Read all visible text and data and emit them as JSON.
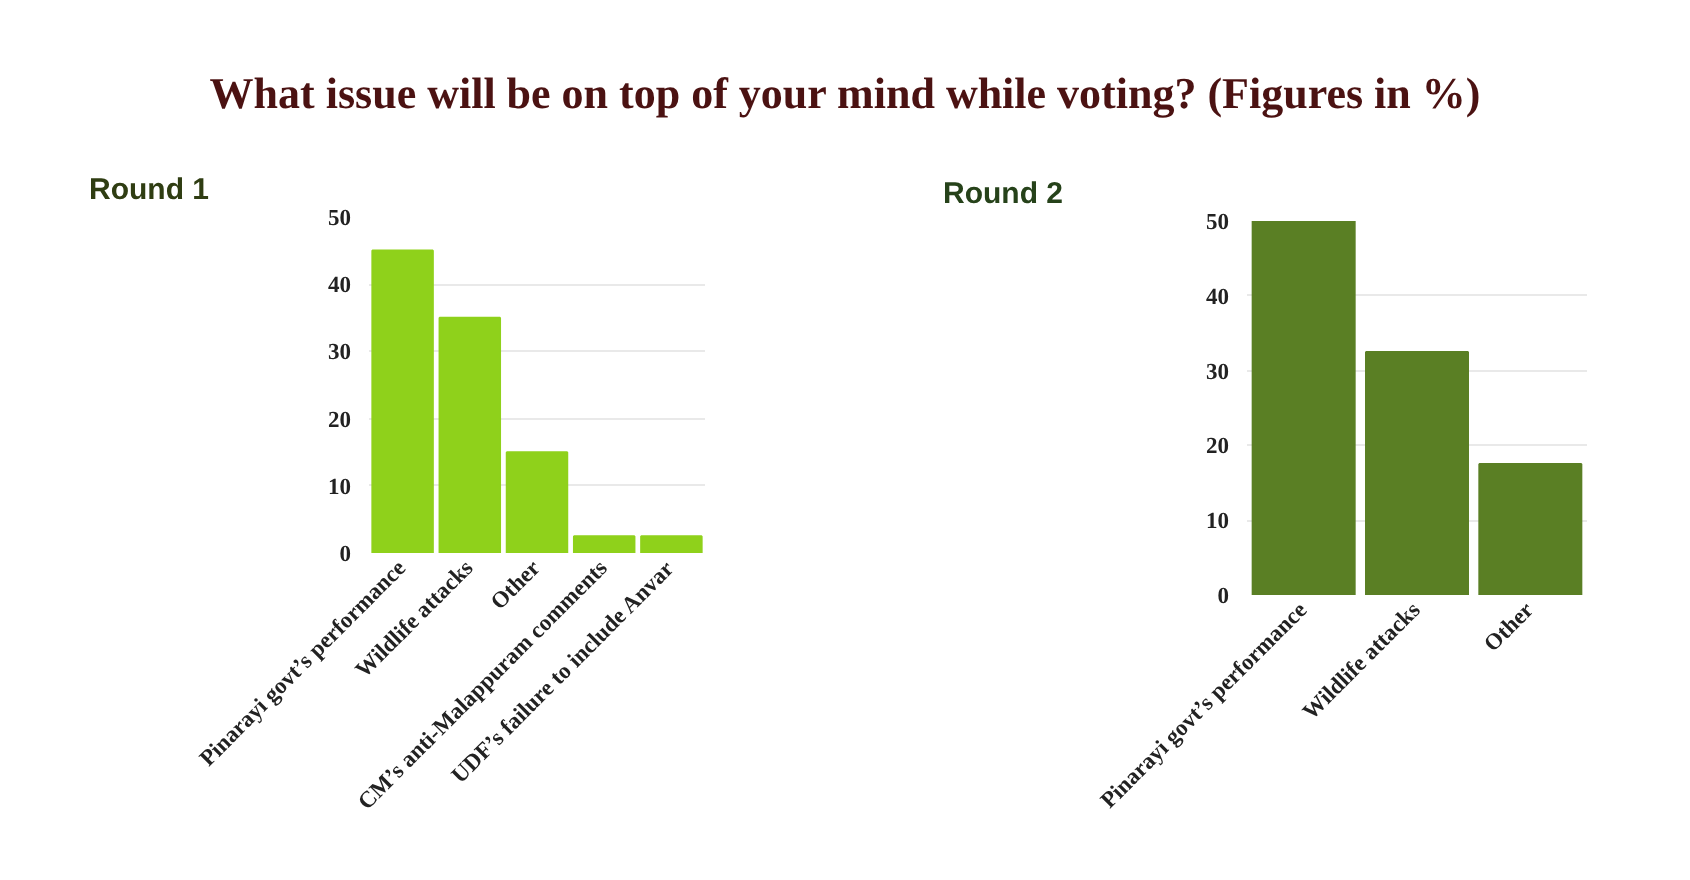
{
  "chart_data": [
    {
      "type": "bar",
      "title": "What issue will be on top of your mind while voting? (Figures in %)",
      "subtitle": "Round 1",
      "categories": [
        "Pinarayi govt’s performance",
        "Wildlife attacks",
        "Other",
        "CM’s anti-Malappuram comments",
        "UDF’s failure to include Anvar"
      ],
      "values": [
        45,
        35,
        15,
        2.5,
        2.5
      ],
      "color": "#8fd11b",
      "ylim": [
        0,
        50
      ],
      "yticks": [
        0,
        10,
        20,
        30,
        40,
        50
      ],
      "grid": "y"
    },
    {
      "type": "bar",
      "subtitle": "Round 2",
      "categories": [
        "Pinarayi govt’s performance",
        "Wildlife attacks",
        "Other"
      ],
      "values": [
        50,
        32.5,
        17.5
      ],
      "color": "#5a7f24",
      "ylim": [
        0,
        50
      ],
      "yticks": [
        0,
        10,
        20,
        30,
        40,
        50
      ],
      "grid": "y"
    }
  ]
}
